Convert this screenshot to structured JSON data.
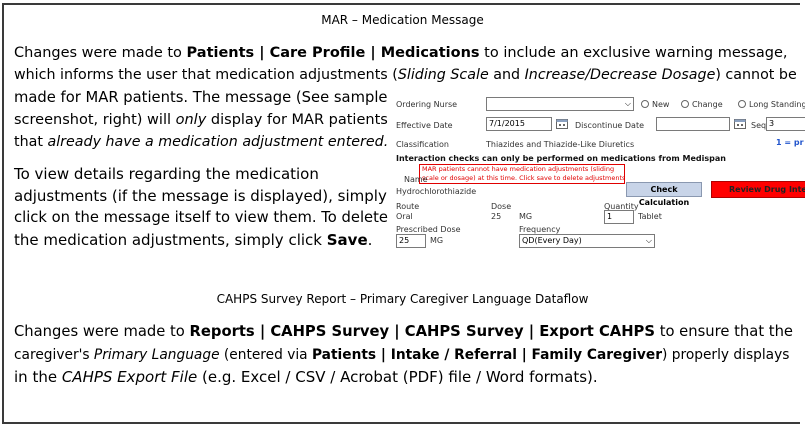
{
  "section1": {
    "title": "MAR – Medication Message",
    "para1": {
      "line1_a": "Changes were made to ",
      "line1_b": "Patients | Care Profile | Medications",
      "line1_c": " to include an exclusive warning message,",
      "line2_a": "which informs the user that medication adjustments (",
      "line2_b": "Sliding Scale",
      "line2_c": " and ",
      "line2_d": "Increase/Decrease Dosage",
      "line2_e": ") cannot be",
      "line3": "made for MAR patients. The message (See sample",
      "line4": "screenshot, right) will ",
      "line4_b": "only",
      "line4_c": " display for MAR patients",
      "line5": "that ",
      "line5_b": "already have a medication adjustment entered."
    },
    "para2": {
      "line1": "To view details regarding the medication",
      "line2": "adjustments (if the message is displayed), simply",
      "line3": "click on the message itself to view them. To delete",
      "line4_a": "the medication adjustments, simply click ",
      "line4_b": "Save",
      "line4_c": "."
    }
  },
  "screenshot": {
    "ordering_nurse_label": "Ordering Nurse",
    "ordering_nurse_value": "",
    "radio_new": "New",
    "radio_change": "Change",
    "radio_long_standing": "Long Standing",
    "effective_date_label": "Effective Date",
    "effective_date_value": "7/1/2015",
    "discontinue_label": "Discontinue Date",
    "discontinue_value": "",
    "seq_label": "Seq",
    "seq_value": "3",
    "classification_label": "Classification",
    "classification_value": "Thiazides and Thiazide-Like Diuretics",
    "pri_text": "1 = pr",
    "interaction_note": "Interaction checks can only be performed on medications from Medispan",
    "warning_line1": "MAR patients cannot have medication adjustments (sliding",
    "warning_line2": "scale or dosage) at this time. Click save to delete adjustments.",
    "name_label": "Name",
    "name_value": "Hydrochlorothiazide",
    "check_calc_button": "Check Calculation",
    "review_drug_button": "Review Drug Intera",
    "route_label": "Route",
    "route_value": "Oral",
    "dose_label": "Dose",
    "dose_value": "25",
    "dose_unit": "MG",
    "quantity_label": "Quantity",
    "quantity_value": "1",
    "quantity_unit": "Tablet",
    "prescribed_label": "Prescribed Dose",
    "prescribed_value": "25",
    "prescribed_unit": "MG",
    "frequency_label": "Frequency",
    "frequency_value": "QD(Every Day)"
  },
  "section2": {
    "title": "CAHPS Survey Report – Primary Caregiver Language Dataflow",
    "line1_a": "Changes were made to ",
    "line1_b": "Reports | CAHPS Survey | CAHPS Survey | Export CAHPS",
    "line1_c": " to ensure that the",
    "line2_a": "caregiver's ",
    "line2_b": "Primary Language",
    "line2_c": " (entered via ",
    "line2_d": "Patients | Intake / Referral | Family Caregiver",
    "line2_e": ") properly displays",
    "line3_a": "in the ",
    "line3_b": "CAHPS Export File",
    "line3_c": " (e.g. Excel / CSV / Acrobat (PDF) file / Word formats)."
  },
  "colors": {
    "warning_red": "#e00000",
    "review_button_red": "#ff0000",
    "check_button_bg": "#c8d4e8",
    "link_blue": "#2255cc"
  }
}
